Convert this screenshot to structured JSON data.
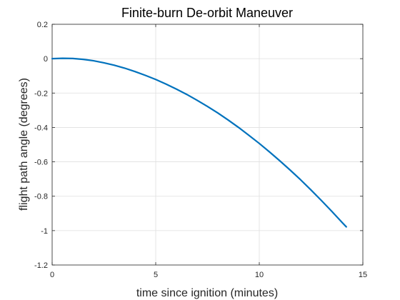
{
  "chart_data": {
    "type": "line",
    "title": "Finite-burn De-orbit Maneuver",
    "xlabel": "time since ignition (minutes)",
    "ylabel": "flight path angle (degrees)",
    "xlim": [
      0,
      15
    ],
    "ylim": [
      -1.2,
      0.2
    ],
    "xticks": [
      0,
      5,
      10,
      15
    ],
    "yticks": [
      -1.2,
      -1,
      -0.8,
      -0.6,
      -0.4,
      -0.2,
      0,
      0.2
    ],
    "xtick_labels": [
      "0",
      "5",
      "10",
      "15"
    ],
    "ytick_labels": [
      "-1.2",
      "-1",
      "-0.8",
      "-0.6",
      "-0.4",
      "-0.2",
      "0",
      "0.2"
    ],
    "grid": true,
    "box": true,
    "series": [
      {
        "color": "#0072BD",
        "x": [
          0,
          0.5,
          1,
          1.5,
          2,
          2.5,
          3,
          3.5,
          4,
          4.5,
          5,
          5.5,
          6,
          6.5,
          7,
          7.5,
          8,
          8.5,
          9,
          9.5,
          10,
          10.5,
          11,
          11.5,
          12,
          12.5,
          13,
          13.5,
          14,
          14.2
        ],
        "y": [
          0,
          0.002,
          0.001,
          -0.004,
          -0.012,
          -0.024,
          -0.038,
          -0.055,
          -0.075,
          -0.097,
          -0.121,
          -0.148,
          -0.177,
          -0.208,
          -0.242,
          -0.278,
          -0.316,
          -0.357,
          -0.4,
          -0.446,
          -0.493,
          -0.543,
          -0.595,
          -0.649,
          -0.705,
          -0.764,
          -0.825,
          -0.888,
          -0.953,
          -0.978
        ]
      }
    ]
  }
}
